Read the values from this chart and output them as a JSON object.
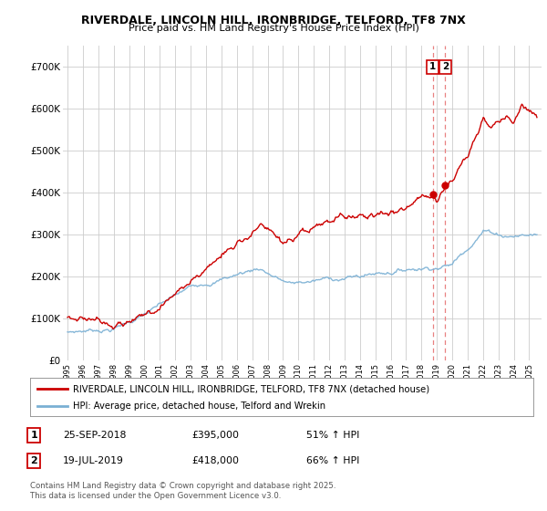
{
  "title": "RIVERDALE, LINCOLN HILL, IRONBRIDGE, TELFORD, TF8 7NX",
  "subtitle": "Price paid vs. HM Land Registry's House Price Index (HPI)",
  "ylim": [
    0,
    750000
  ],
  "yticks": [
    0,
    100000,
    200000,
    300000,
    400000,
    500000,
    600000,
    700000
  ],
  "ytick_labels": [
    "£0",
    "£100K",
    "£200K",
    "£300K",
    "£400K",
    "£500K",
    "£600K",
    "£700K"
  ],
  "xlim_start": 1994.7,
  "xlim_end": 2025.8,
  "red_line_color": "#cc0000",
  "blue_line_color": "#7ab0d4",
  "marker1_date": 2018.73,
  "marker1_price": 395000,
  "marker2_date": 2019.54,
  "marker2_price": 418000,
  "vline_color": "#e88080",
  "legend_label1": "RIVERDALE, LINCOLN HILL, IRONBRIDGE, TELFORD, TF8 7NX (detached house)",
  "legend_label2": "HPI: Average price, detached house, Telford and Wrekin",
  "note1_date": "25-SEP-2018",
  "note1_price": "£395,000",
  "note1_hpi": "51% ↑ HPI",
  "note2_date": "19-JUL-2019",
  "note2_price": "£418,000",
  "note2_hpi": "66% ↑ HPI",
  "footer": "Contains HM Land Registry data © Crown copyright and database right 2025.\nThis data is licensed under the Open Government Licence v3.0.",
  "background_color": "#ffffff",
  "grid_color": "#cccccc"
}
